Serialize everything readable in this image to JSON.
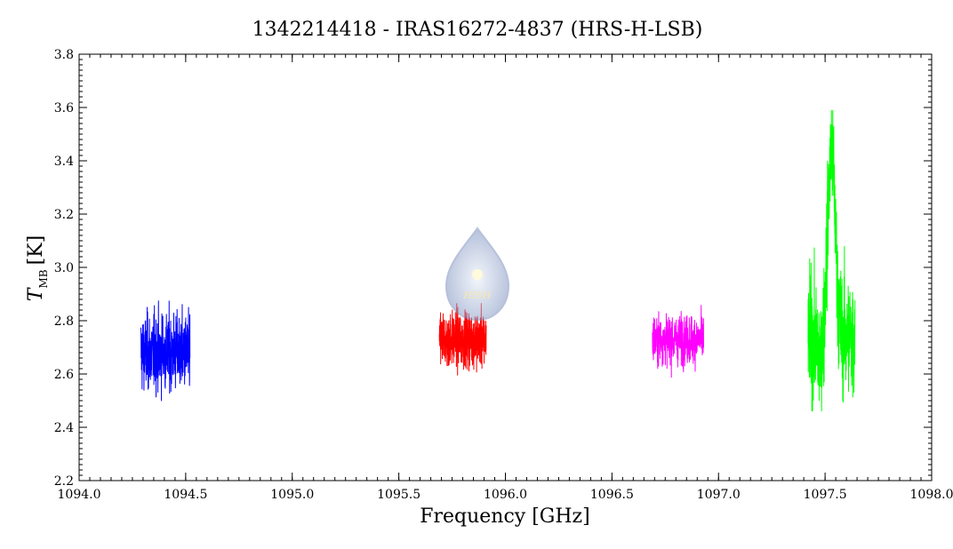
{
  "chart_data": {
    "type": "line",
    "title": "1342214418 - IRAS16272-4837 (HRS-H-LSB)",
    "xlabel": "Frequency [GHz]",
    "ylabel_main": "T",
    "ylabel_sub": "MB",
    "ylabel_unit": "[K]",
    "xlim": [
      1094.0,
      1098.0
    ],
    "ylim": [
      2.2,
      3.8
    ],
    "xticks": [
      1094.0,
      1094.5,
      1095.0,
      1095.5,
      1096.0,
      1096.5,
      1097.0,
      1097.5,
      1098.0
    ],
    "xtick_labels": [
      "1094.0",
      "1094.5",
      "1095.0",
      "1095.5",
      "1096.0",
      "1096.5",
      "1097.0",
      "1097.5",
      "1098.0"
    ],
    "yticks": [
      2.2,
      2.4,
      2.6,
      2.8,
      3.0,
      3.2,
      3.4,
      3.6,
      3.8
    ],
    "ytick_labels": [
      "2.2",
      "2.4",
      "2.6",
      "2.8",
      "3.0",
      "3.2",
      "3.4",
      "3.6",
      "3.8"
    ],
    "grid": false,
    "watermark_text": "HISH",
    "series": [
      {
        "color": "#0000ff",
        "x_range": [
          1094.29,
          1094.52
        ],
        "baseline": 2.68,
        "noise_min": 2.33,
        "noise_max": 3.05,
        "line_center": null,
        "line_peak": null
      },
      {
        "color": "#ff0000",
        "x_range": [
          1095.69,
          1095.91
        ],
        "baseline": 2.73,
        "noise_min": 2.48,
        "noise_max": 3.02,
        "line_center": null,
        "line_peak": null
      },
      {
        "color": "#ff00ff",
        "x_range": [
          1096.69,
          1096.93
        ],
        "baseline": 2.73,
        "noise_min": 2.52,
        "noise_max": 2.98,
        "line_center": null,
        "line_peak": null
      },
      {
        "color": "#00ff00",
        "x_range": [
          1097.42,
          1097.64
        ],
        "baseline": 2.74,
        "noise_min": 2.46,
        "noise_max": 3.59,
        "line_center": 1097.53,
        "line_peak": 3.59
      }
    ]
  }
}
